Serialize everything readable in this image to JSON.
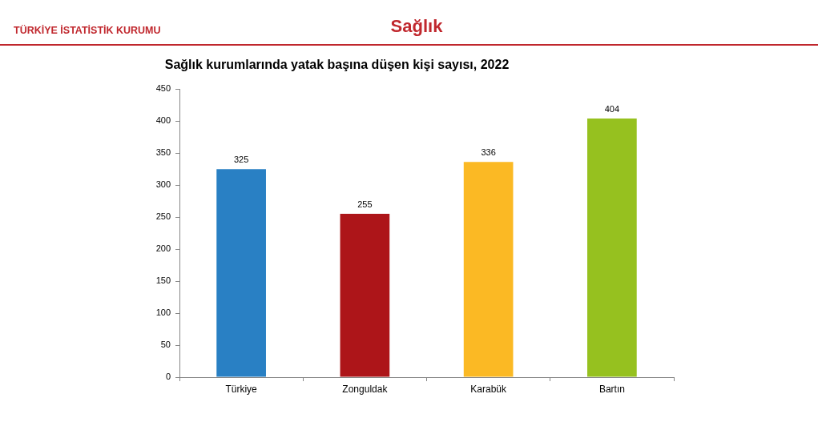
{
  "chart_data": {
    "type": "bar",
    "title": "Sağlık kurumlarında yatak başına düşen kişi sayısı, 2022",
    "annotations": [
      "TÜRKİYE İSTATİSTİK KURUMU",
      "Sağlık"
    ],
    "categories": [
      "Türkiye",
      "Zonguldak",
      "Karabük",
      "Bartın"
    ],
    "values": [
      325,
      255,
      336,
      404
    ],
    "colors": [
      "#2980c4",
      "#ad1519",
      "#fbb924",
      "#96c11f"
    ],
    "ylim": [
      0,
      450
    ],
    "yticks": [
      0,
      50,
      100,
      150,
      200,
      250,
      300,
      350,
      400,
      450
    ],
    "grid": false,
    "data_labels": true
  }
}
